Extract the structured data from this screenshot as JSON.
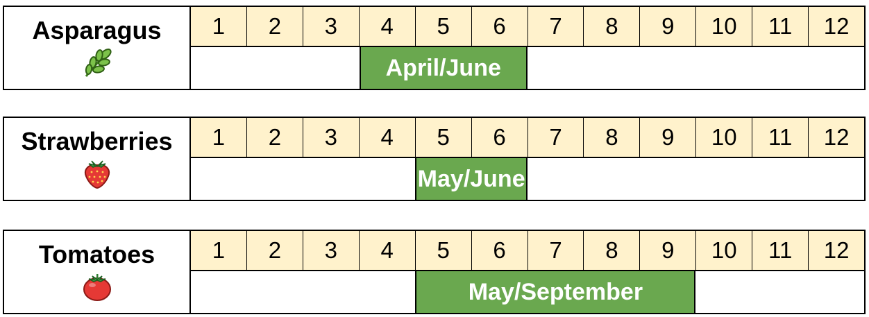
{
  "chart_data": {
    "type": "table",
    "months": [
      "1",
      "2",
      "3",
      "4",
      "5",
      "6",
      "7",
      "8",
      "9",
      "10",
      "11",
      "12"
    ],
    "crops": [
      {
        "name": "Asparagus",
        "icon": "leafy-herb-icon",
        "season_label": "April/June",
        "start_month": 4,
        "end_month": 6
      },
      {
        "name": "Strawberries",
        "icon": "strawberry-icon",
        "season_label": "May/June",
        "start_month": 5,
        "end_month": 6
      },
      {
        "name": "Tomatoes",
        "icon": "tomato-icon",
        "season_label": "May/September",
        "start_month": 5,
        "end_month": 9
      }
    ]
  },
  "colors": {
    "month_header_bg": "#fff2cc",
    "season_bar": "#6aa84f",
    "season_text": "#ffffff",
    "border": "#000000"
  }
}
